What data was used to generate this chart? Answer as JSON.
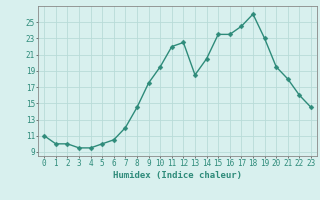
{
  "x": [
    0,
    1,
    2,
    3,
    4,
    5,
    6,
    7,
    8,
    9,
    10,
    11,
    12,
    13,
    14,
    15,
    16,
    17,
    18,
    19,
    20,
    21,
    22,
    23
  ],
  "y": [
    11,
    10,
    10,
    9.5,
    9.5,
    10,
    10.5,
    12,
    14.5,
    17.5,
    19.5,
    22,
    22.5,
    18.5,
    20.5,
    23.5,
    23.5,
    24.5,
    26,
    23,
    19.5,
    18,
    16,
    14.5
  ],
  "line_color": "#2e8b7a",
  "marker_color": "#2e8b7a",
  "bg_color": "#d8f0ee",
  "grid_color": "#b8dbd8",
  "xlabel": "Humidex (Indice chaleur)",
  "xlim": [
    -0.5,
    23.5
  ],
  "ylim": [
    8.5,
    27
  ],
  "yticks": [
    9,
    11,
    13,
    15,
    17,
    19,
    21,
    23,
    25
  ],
  "xticks": [
    0,
    1,
    2,
    3,
    4,
    5,
    6,
    7,
    8,
    9,
    10,
    11,
    12,
    13,
    14,
    15,
    16,
    17,
    18,
    19,
    20,
    21,
    22,
    23
  ],
  "tick_fontsize": 5.5,
  "xlabel_fontsize": 6.5,
  "marker_size": 2.5,
  "line_width": 1.0
}
